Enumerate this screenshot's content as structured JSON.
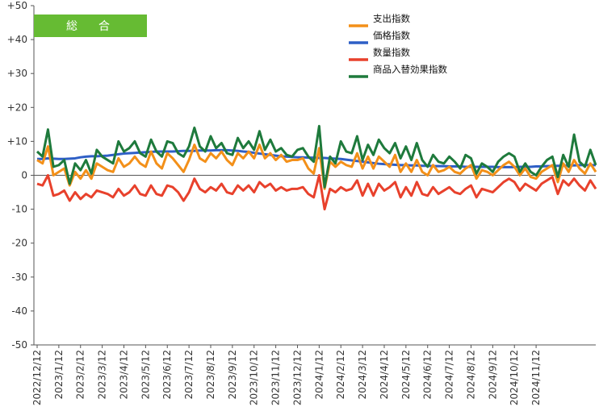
{
  "chart_data": {
    "type": "line",
    "title_badge": "総　合",
    "badge_color": "#66BB33",
    "ylim": [
      -50,
      50
    ],
    "y_ticks": [
      {
        "value": 50,
        "label": "+50"
      },
      {
        "value": 40,
        "label": "+40"
      },
      {
        "value": 30,
        "label": "+30"
      },
      {
        "value": 20,
        "label": "+20"
      },
      {
        "value": 10,
        "label": "+10"
      },
      {
        "value": 0,
        "label": "0"
      },
      {
        "value": -10,
        "label": "-10"
      },
      {
        "value": -20,
        "label": "-20"
      },
      {
        "value": -30,
        "label": "-30"
      },
      {
        "value": -40,
        "label": "-40"
      },
      {
        "value": -50,
        "label": "-50"
      }
    ],
    "x_count": 104,
    "x_ticks": [
      {
        "index": 0,
        "label": "2022/12/12"
      },
      {
        "index": 4,
        "label": "2023/1/12"
      },
      {
        "index": 8,
        "label": "2023/2/12"
      },
      {
        "index": 12,
        "label": "2023/3/12"
      },
      {
        "index": 16,
        "label": "2023/4/12"
      },
      {
        "index": 20,
        "label": "2023/5/12"
      },
      {
        "index": 24,
        "label": "2023/6/12"
      },
      {
        "index": 28,
        "label": "2023/7/12"
      },
      {
        "index": 32,
        "label": "2023/8/12"
      },
      {
        "index": 36,
        "label": "2023/9/12"
      },
      {
        "index": 40,
        "label": "2023/10/12"
      },
      {
        "index": 44,
        "label": "2023/11/12"
      },
      {
        "index": 48,
        "label": "2023/12/12"
      },
      {
        "index": 52,
        "label": "2024/1/12"
      },
      {
        "index": 56,
        "label": "2024/2/12"
      },
      {
        "index": 60,
        "label": "2024/3/12"
      },
      {
        "index": 64,
        "label": "2024/4/12"
      },
      {
        "index": 68,
        "label": "2024/5/12"
      },
      {
        "index": 72,
        "label": "2024/6/12"
      },
      {
        "index": 76,
        "label": "2024/7/12"
      },
      {
        "index": 80,
        "label": "2024/8/12"
      },
      {
        "index": 84,
        "label": "2024/9/12"
      },
      {
        "index": 88,
        "label": "2024/10/12"
      },
      {
        "index": 92,
        "label": "2024/11/12"
      }
    ],
    "series": [
      {
        "name": "支出指数",
        "color": "#F39019",
        "values": [
          4.5,
          3.5,
          8.5,
          0.0,
          1.0,
          2.0,
          -3.0,
          1.0,
          -1.0,
          1.5,
          -1.0,
          3.5,
          2.5,
          1.5,
          1.0,
          5.0,
          2.5,
          3.5,
          5.5,
          3.5,
          2.5,
          7.0,
          3.5,
          2.0,
          6.5,
          5.0,
          3.0,
          1.0,
          4.5,
          9.0,
          5.0,
          4.0,
          6.5,
          5.0,
          7.0,
          4.5,
          3.0,
          6.5,
          5.0,
          7.0,
          5.0,
          9.0,
          5.0,
          6.5,
          4.5,
          6.0,
          4.0,
          4.5,
          4.5,
          5.0,
          2.0,
          0.5,
          8.0,
          -4.0,
          4.0,
          2.5,
          4.0,
          3.0,
          2.5,
          6.5,
          2.0,
          5.5,
          2.0,
          5.5,
          4.0,
          2.5,
          6.0,
          1.0,
          3.5,
          1.0,
          4.5,
          1.0,
          0.0,
          3.0,
          1.0,
          1.5,
          2.5,
          1.0,
          0.5,
          2.0,
          3.0,
          -1.0,
          1.5,
          1.0,
          0.0,
          1.5,
          3.0,
          4.0,
          2.5,
          0.0,
          2.0,
          -0.5,
          -1.0,
          1.0,
          2.0,
          3.0,
          -2.0,
          3.5,
          1.0,
          4.5,
          2.0,
          0.5,
          3.5,
          1.0
        ]
      },
      {
        "name": "価格指数",
        "color": "#2E5FC6",
        "values": [
          4.8,
          4.8,
          5.0,
          4.9,
          4.8,
          4.8,
          4.9,
          5.0,
          5.3,
          5.5,
          5.6,
          5.6,
          5.7,
          5.8,
          6.0,
          6.2,
          6.4,
          6.5,
          6.6,
          6.7,
          6.8,
          6.9,
          7.0,
          7.0,
          7.0,
          7.0,
          7.1,
          7.2,
          7.2,
          7.2,
          7.3,
          7.3,
          7.3,
          7.4,
          7.4,
          7.4,
          7.3,
          7.2,
          7.0,
          6.9,
          6.6,
          6.4,
          6.2,
          6.0,
          5.8,
          5.6,
          5.5,
          5.4,
          5.3,
          5.3,
          5.2,
          5.2,
          5.1,
          5.1,
          5.0,
          4.9,
          4.8,
          4.6,
          4.4,
          4.2,
          4.0,
          3.8,
          3.6,
          3.4,
          3.3,
          3.2,
          3.1,
          3.0,
          3.0,
          2.9,
          2.9,
          2.8,
          2.8,
          2.7,
          2.7,
          2.7,
          2.6,
          2.6,
          2.6,
          2.5,
          2.5,
          2.5,
          2.5,
          2.5,
          2.5,
          2.4,
          2.4,
          2.4,
          2.4,
          2.5,
          2.5,
          2.5,
          2.6,
          2.6,
          2.7,
          2.7,
          2.8,
          2.8,
          2.9,
          2.9,
          3.0,
          3.0,
          3.0,
          3.0
        ]
      },
      {
        "name": "数量指数",
        "color": "#E8412C",
        "values": [
          -2.5,
          -3.0,
          0.0,
          -6.0,
          -5.5,
          -4.5,
          -7.5,
          -5.0,
          -7.0,
          -5.5,
          -6.5,
          -4.5,
          -5.0,
          -5.5,
          -6.5,
          -4.0,
          -6.0,
          -5.0,
          -3.0,
          -5.5,
          -6.0,
          -3.0,
          -5.5,
          -6.0,
          -3.0,
          -3.5,
          -5.0,
          -7.5,
          -5.0,
          -1.0,
          -4.0,
          -5.0,
          -3.5,
          -4.5,
          -2.5,
          -5.0,
          -5.5,
          -3.0,
          -4.5,
          -3.0,
          -5.0,
          -2.0,
          -3.5,
          -2.5,
          -4.5,
          -3.5,
          -4.5,
          -4.0,
          -4.0,
          -3.5,
          -5.5,
          -6.5,
          0.0,
          -10.0,
          -4.0,
          -5.0,
          -3.5,
          -4.5,
          -4.0,
          -1.5,
          -6.0,
          -2.5,
          -6.0,
          -2.5,
          -4.5,
          -3.5,
          -2.0,
          -6.5,
          -3.5,
          -6.0,
          -2.0,
          -5.5,
          -6.0,
          -3.5,
          -5.5,
          -4.5,
          -3.5,
          -5.0,
          -5.5,
          -4.0,
          -3.0,
          -6.5,
          -4.0,
          -4.5,
          -5.0,
          -3.5,
          -2.0,
          -1.0,
          -2.0,
          -4.5,
          -2.5,
          -3.5,
          -4.5,
          -2.5,
          -1.5,
          -0.5,
          -5.5,
          -1.5,
          -3.0,
          -1.0,
          -3.0,
          -4.5,
          -1.5,
          -4.0
        ]
      },
      {
        "name": "商品入替効果指数",
        "color": "#1E7A3C",
        "values": [
          7.0,
          5.5,
          13.5,
          2.5,
          3.0,
          4.5,
          -2.5,
          3.5,
          1.5,
          4.5,
          0.5,
          7.5,
          5.5,
          4.5,
          3.5,
          10.0,
          7.0,
          8.0,
          10.0,
          6.5,
          5.5,
          10.5,
          7.0,
          5.5,
          10.0,
          9.5,
          6.5,
          5.5,
          8.5,
          14.0,
          8.5,
          7.0,
          11.5,
          8.0,
          9.5,
          6.5,
          6.0,
          11.0,
          8.0,
          10.0,
          7.5,
          13.0,
          7.5,
          10.5,
          7.0,
          8.0,
          6.0,
          5.5,
          7.5,
          8.0,
          5.5,
          4.0,
          14.5,
          -3.5,
          5.5,
          3.5,
          10.0,
          7.0,
          6.5,
          11.5,
          4.5,
          9.0,
          6.0,
          10.5,
          8.0,
          6.5,
          9.5,
          5.0,
          8.5,
          4.5,
          9.5,
          4.5,
          2.5,
          6.0,
          4.0,
          3.5,
          5.5,
          4.0,
          2.0,
          6.0,
          5.0,
          0.5,
          3.5,
          2.5,
          1.0,
          4.0,
          5.5,
          6.5,
          5.5,
          1.0,
          3.5,
          1.0,
          0.0,
          2.5,
          4.5,
          5.5,
          -0.5,
          6.0,
          2.5,
          12.0,
          4.0,
          2.5,
          7.5,
          3.0
        ]
      }
    ]
  }
}
